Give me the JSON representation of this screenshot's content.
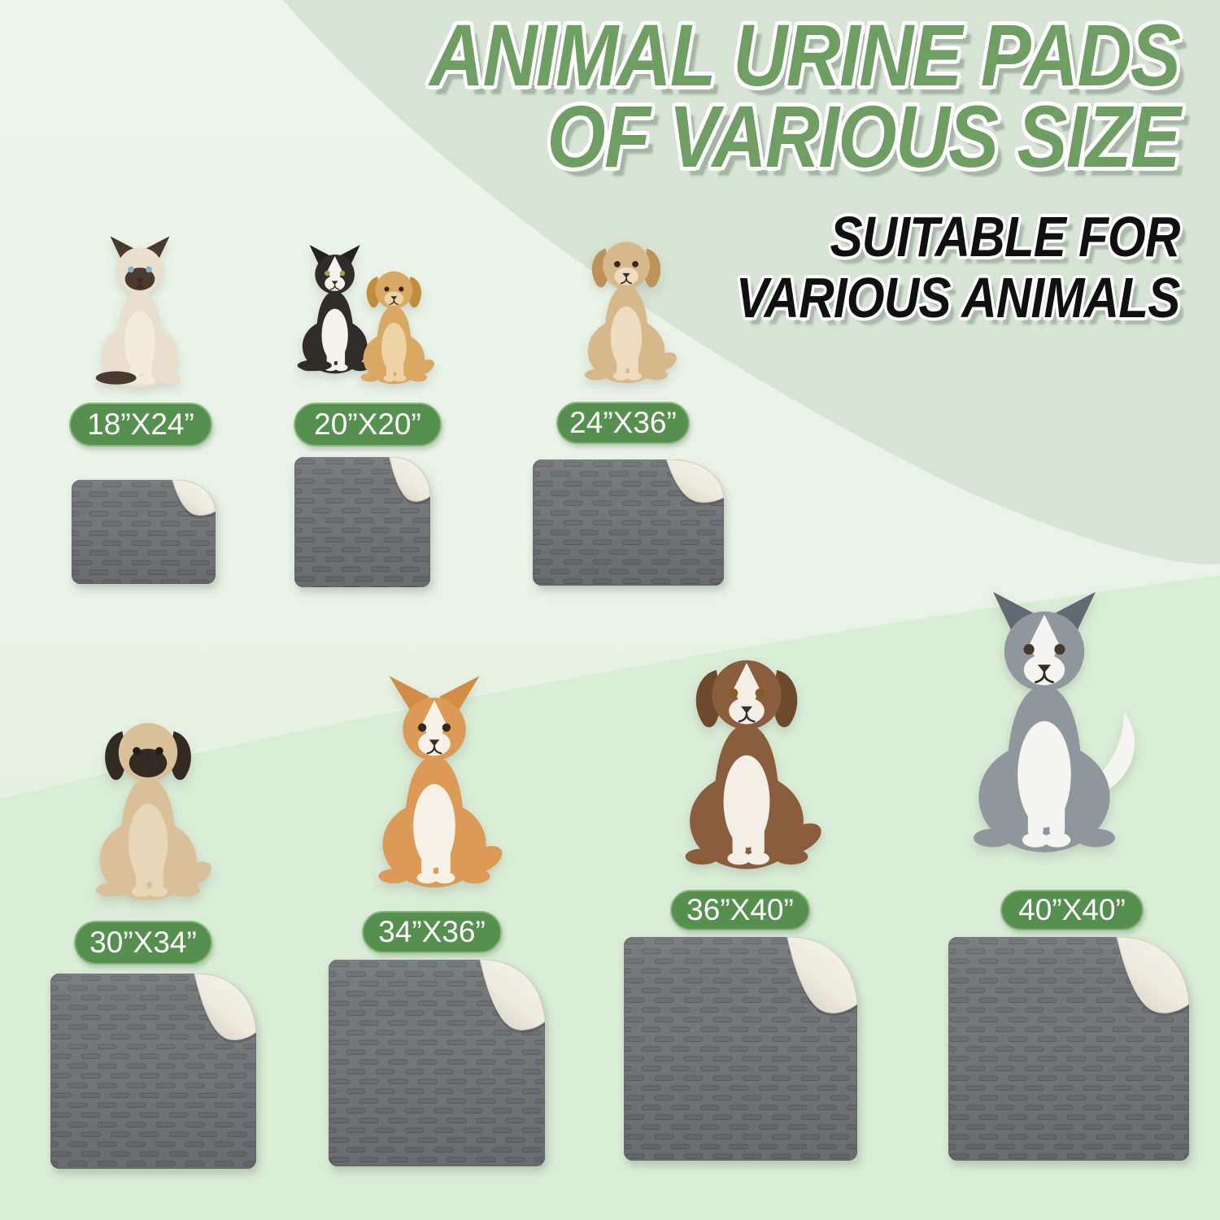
{
  "header": {
    "title_line1": "ANIMAL URINE PADS",
    "title_line2": "OF VARIOUS SIZE",
    "subtitle_line1": "SUITABLE FOR",
    "subtitle_line2": "VARIOUS ANIMALS"
  },
  "colors": {
    "title_green": "#6f9e63",
    "badge_green": "#55904e",
    "badge_border": "#8ab77f",
    "background_sage": "#d6e3d5",
    "background_bottom": "#d9ecd6",
    "pad_gray": "#75777b",
    "pad_fold_ivory": "#efece4"
  },
  "groups": [
    {
      "size_label": "18”X24”",
      "animal": "siamese-cat"
    },
    {
      "size_label": "20”X20”",
      "animal": "tuxedo-cat-and-puppy"
    },
    {
      "size_label": "24”X36”",
      "animal": "tan-dog"
    },
    {
      "size_label": "30”X34”",
      "animal": "pug"
    },
    {
      "size_label": "34”X36”",
      "animal": "corgi"
    },
    {
      "size_label": "36”X40”",
      "animal": "australian-shepherd"
    },
    {
      "size_label": "40”X40”",
      "animal": "husky"
    }
  ]
}
